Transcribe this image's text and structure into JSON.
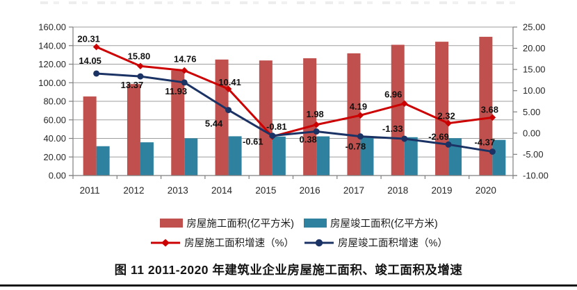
{
  "page": {
    "caption": "图 11  2011-2020 年建筑业企业房屋施工面积、竣工面积及增速"
  },
  "chart_data": {
    "type": "combo-bar-line",
    "categories": [
      "2011",
      "2012",
      "2013",
      "2014",
      "2015",
      "2016",
      "2017",
      "2018",
      "2019",
      "2020"
    ],
    "series": [
      {
        "name": "房屋施工面积(亿平方米)",
        "chart_type": "bar",
        "axis": "left",
        "color": "#C0504D",
        "values": [
          85.2,
          98.6,
          113.2,
          125.0,
          124.0,
          126.4,
          131.7,
          140.9,
          144.2,
          149.5
        ]
      },
      {
        "name": "房屋竣工面积(亿平方米)",
        "chart_type": "bar",
        "axis": "left",
        "color": "#2E829F",
        "values": [
          31.6,
          35.8,
          40.1,
          42.3,
          42.0,
          42.2,
          41.9,
          41.3,
          40.2,
          38.4
        ]
      },
      {
        "name": "房屋施工面积增速（%）",
        "chart_type": "line",
        "axis": "right",
        "color": "#CC0000",
        "marker": "diamond",
        "data_labels": true,
        "values": [
          20.31,
          15.8,
          14.76,
          10.41,
          -0.81,
          1.98,
          4.19,
          6.96,
          2.32,
          3.68
        ]
      },
      {
        "name": "房屋竣工面积增速（%）",
        "chart_type": "line",
        "axis": "right",
        "color": "#1B3264",
        "marker": "circle",
        "data_labels": true,
        "values": [
          14.05,
          13.37,
          11.93,
          5.44,
          -0.61,
          0.38,
          -0.78,
          -1.33,
          -2.69,
          -4.37
        ]
      }
    ],
    "left_axis": {
      "min": 0,
      "max": 160,
      "step": 20,
      "format": "0.00"
    },
    "right_axis": {
      "min": -10,
      "max": 25,
      "step": 5,
      "format": "0.00"
    },
    "grid": true,
    "legend_position": "bottom",
    "label_format": "0.00"
  },
  "colors": {
    "gridline": "#9E9E9E",
    "axis": "#7F7F7F",
    "axis_text": "#262626",
    "data_label_text": "#111111"
  }
}
